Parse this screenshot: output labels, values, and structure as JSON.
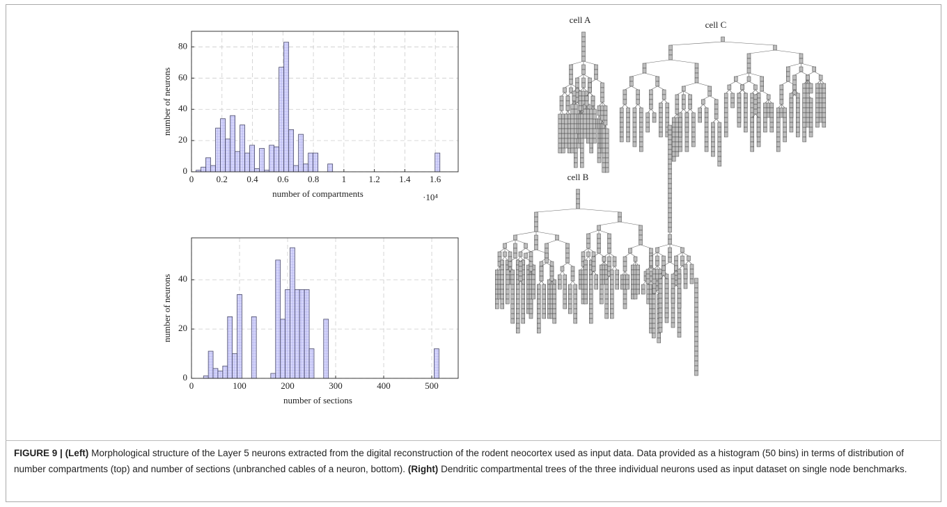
{
  "chart_data": [
    {
      "type": "histogram",
      "y_label": "number of neurons",
      "x_label": "number of compartments",
      "x_multiplier": "·10⁴",
      "bins": [
        0.03,
        0.062,
        0.094,
        0.126,
        0.158,
        0.19,
        0.222,
        0.254,
        0.286,
        0.318,
        0.35,
        0.382,
        0.414,
        0.446,
        0.478,
        0.51,
        0.542,
        0.574,
        0.606,
        0.638,
        0.67,
        0.702,
        0.734,
        0.766,
        0.798,
        0.83,
        0.862,
        0.894,
        0.926,
        0.958,
        0.99,
        1.022,
        1.054,
        1.086,
        1.118,
        1.15,
        1.182,
        1.214,
        1.246,
        1.278,
        1.31,
        1.342,
        1.374,
        1.406,
        1.438,
        1.47,
        1.502,
        1.534,
        1.566,
        1.598,
        1.63
      ],
      "values": [
        1,
        3,
        9,
        4,
        28,
        34,
        21,
        36,
        13,
        30,
        12,
        17,
        2,
        15,
        1,
        17,
        16,
        67,
        83,
        27,
        4,
        24,
        5,
        12,
        12,
        0,
        0,
        5,
        0,
        0,
        0,
        0,
        0,
        0,
        0,
        0,
        0,
        0,
        0,
        0,
        0,
        0,
        0,
        0,
        0,
        0,
        0,
        0,
        0,
        12
      ],
      "color": "#d4d4fa",
      "xlim": [
        0,
        1.75
      ],
      "ylim": [
        0,
        90
      ],
      "xticks": [
        0,
        0.2,
        0.4,
        0.6,
        0.8,
        1,
        1.2,
        1.4,
        1.6
      ],
      "yticks": [
        0,
        20,
        40,
        60,
        80
      ],
      "grid": true
    },
    {
      "type": "histogram",
      "y_label": "number of neurons",
      "x_label": "number of sections",
      "bins": [
        15,
        25,
        35,
        45,
        55,
        65,
        75,
        85,
        95,
        105,
        115,
        125,
        135,
        145,
        155,
        165,
        175,
        185,
        195,
        205,
        215,
        225,
        235,
        245,
        255,
        265,
        275,
        285,
        295,
        305,
        315,
        325,
        335,
        345,
        355,
        365,
        375,
        385,
        395,
        405,
        415,
        425,
        435,
        445,
        455,
        465,
        475,
        485,
        495,
        505,
        515
      ],
      "values": [
        0,
        1,
        11,
        4,
        3,
        5,
        25,
        10,
        34,
        0,
        0,
        25,
        0,
        0,
        0,
        2,
        48,
        24,
        36,
        53,
        36,
        36,
        36,
        12,
        0,
        0,
        24,
        0,
        0,
        0,
        0,
        0,
        0,
        0,
        0,
        0,
        0,
        0,
        0,
        0,
        0,
        0,
        0,
        0,
        0,
        0,
        0,
        0,
        0,
        12
      ],
      "color": "#d4d4fa",
      "xlim": [
        0,
        555
      ],
      "ylim": [
        0,
        57
      ],
      "xticks": [
        0,
        100,
        200,
        300,
        400,
        500
      ],
      "yticks": [
        0,
        20,
        40
      ],
      "grid": true
    }
  ],
  "cells": [
    "cell A",
    "cell B",
    "cell C"
  ],
  "caption": {
    "figure_label": "FIGURE 9 |",
    "left_label": "(Left)",
    "left_text": "Morphological structure of the Layer 5 neurons extracted from the digital reconstruction of the rodent neocortex used as input data. Data provided as a histogram (50 bins) in terms of distribution of number compartments (top) and number of sections (unbranched cables of a neuron, bottom).",
    "right_label": "(Right)",
    "right_text": "Dendritic compartmental trees of the three individual neurons used as input dataset on single node benchmarks."
  }
}
